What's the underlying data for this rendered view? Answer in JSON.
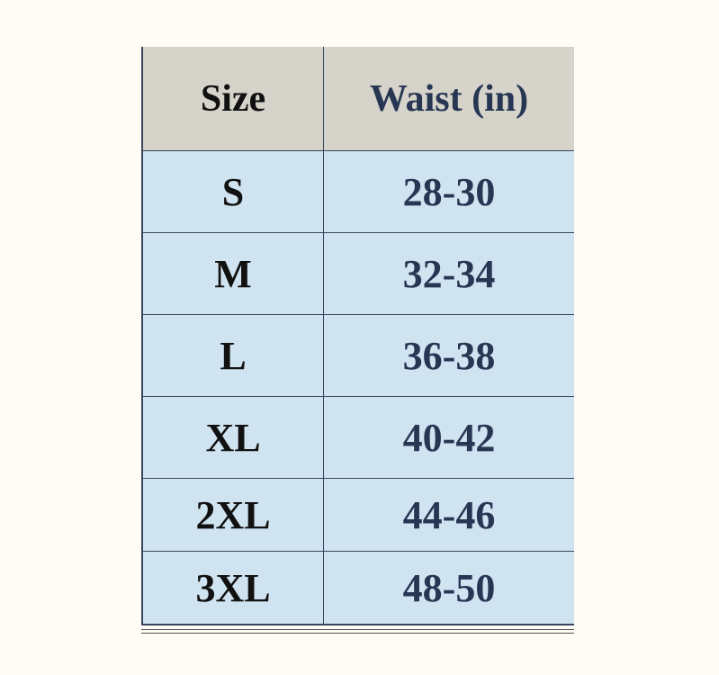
{
  "table": {
    "header": [
      "Size",
      "Waist (in)"
    ],
    "rows": [
      [
        "S",
        "28-30"
      ],
      [
        "M",
        "32-34"
      ],
      [
        "L",
        "36-38"
      ],
      [
        "XL",
        "40-42"
      ],
      [
        "2XL",
        "44-46"
      ],
      [
        "3XL",
        "48-50"
      ]
    ]
  }
}
